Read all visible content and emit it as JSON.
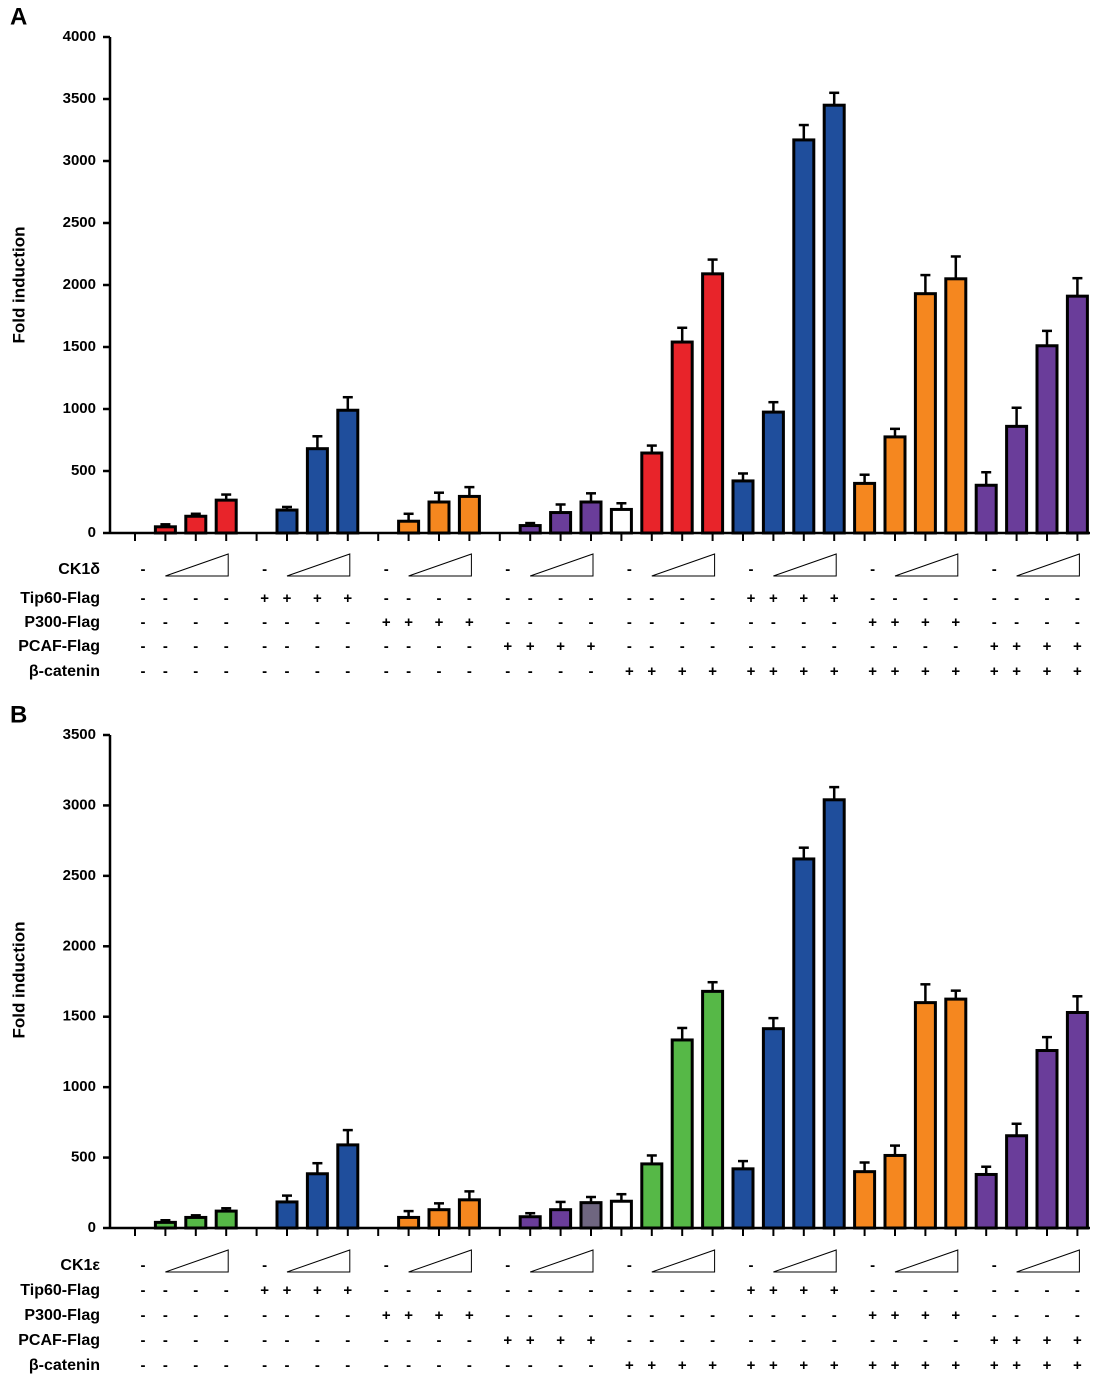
{
  "chart_data": [
    {
      "type": "bar",
      "panel": "A",
      "ylabel": "Fold induction",
      "ylim": [
        0,
        4000
      ],
      "yticks": [
        0,
        500,
        1000,
        1500,
        2000,
        2500,
        3000,
        3500,
        4000
      ],
      "categories": [
        null,
        null,
        null,
        null,
        null,
        null,
        null,
        null,
        null,
        null,
        null,
        null,
        null,
        null,
        null,
        null,
        null,
        null,
        null,
        null,
        null,
        null,
        null,
        null,
        null,
        null,
        null,
        null,
        null,
        null,
        null,
        null
      ],
      "values": [
        0,
        50,
        135,
        265,
        0,
        185,
        680,
        990,
        0,
        95,
        250,
        295,
        0,
        60,
        165,
        250,
        190,
        645,
        1540,
        2090,
        420,
        975,
        3170,
        3450,
        400,
        775,
        1930,
        2050,
        385,
        860,
        1510,
        1910
      ],
      "errors": [
        0,
        20,
        20,
        45,
        0,
        25,
        100,
        105,
        0,
        60,
        75,
        75,
        0,
        20,
        65,
        70,
        50,
        60,
        115,
        115,
        60,
        80,
        120,
        100,
        70,
        65,
        150,
        180,
        105,
        150,
        120,
        145
      ],
      "colors": [
        "#e8242a",
        "#e8242a",
        "#e8242a",
        "#e8242a",
        "#1f4e9c",
        "#1f4e9c",
        "#1f4e9c",
        "#1f4e9c",
        "#f5871f",
        "#f5871f",
        "#f5871f",
        "#f5871f",
        "#6a3d9a",
        "#6a3d9a",
        "#6a3d9a",
        "#6a3d9a",
        "#ffffff",
        "#e8242a",
        "#e8242a",
        "#e8242a",
        "#1f4e9c",
        "#1f4e9c",
        "#1f4e9c",
        "#1f4e9c",
        "#f5871f",
        "#f5871f",
        "#f5871f",
        "#f5871f",
        "#6a3d9a",
        "#6a3d9a",
        "#6a3d9a",
        "#6a3d9a"
      ],
      "conditions": [
        {
          "label": "CK1δ",
          "marks": [
            "-",
            null,
            null,
            null,
            "-",
            null,
            null,
            null,
            "-",
            null,
            null,
            null,
            "-",
            null,
            null,
            null,
            "-",
            null,
            null,
            null,
            "-",
            null,
            null,
            null,
            "-",
            null,
            null,
            null,
            "-",
            null,
            null,
            null
          ]
        },
        {
          "label": "Tip60-Flag",
          "marks": [
            "-",
            "-",
            "-",
            "-",
            "+",
            "+",
            "+",
            "+",
            "-",
            "-",
            "-",
            "-",
            "-",
            "-",
            "-",
            "-",
            "-",
            "-",
            "-",
            "-",
            "+",
            "+",
            "+",
            "+",
            "-",
            "-",
            "-",
            "-",
            "-",
            "-",
            "-",
            "-"
          ]
        },
        {
          "label": "P300-Flag",
          "marks": [
            "-",
            "-",
            "-",
            "-",
            "-",
            "-",
            "-",
            "-",
            "+",
            "+",
            "+",
            "+",
            "-",
            "-",
            "-",
            "-",
            "-",
            "-",
            "-",
            "-",
            "-",
            "-",
            "-",
            "-",
            "+",
            "+",
            "+",
            "+",
            "-",
            "-",
            "-",
            "-"
          ]
        },
        {
          "label": "PCAF-Flag",
          "marks": [
            "-",
            "-",
            "-",
            "-",
            "-",
            "-",
            "-",
            "-",
            "-",
            "-",
            "-",
            "-",
            "+",
            "+",
            "+",
            "+",
            "-",
            "-",
            "-",
            "-",
            "-",
            "-",
            "-",
            "-",
            "-",
            "-",
            "-",
            "-",
            "+",
            "+",
            "+",
            "+"
          ]
        },
        {
          "label": "β-catenin",
          "marks": [
            "-",
            "-",
            "-",
            "-",
            "-",
            "-",
            "-",
            "-",
            "-",
            "-",
            "-",
            "-",
            "-",
            "-",
            "-",
            "-",
            "+",
            "+",
            "+",
            "+",
            "+",
            "+",
            "+",
            "+",
            "+",
            "+",
            "+",
            "+",
            "+",
            "+",
            "+",
            "+"
          ]
        }
      ]
    },
    {
      "type": "bar",
      "panel": "B",
      "ylabel": "Fold induction",
      "ylim": [
        0,
        3500
      ],
      "yticks": [
        0,
        500,
        1000,
        1500,
        2000,
        2500,
        3000,
        3500
      ],
      "categories": [
        null,
        null,
        null,
        null,
        null,
        null,
        null,
        null,
        null,
        null,
        null,
        null,
        null,
        null,
        null,
        null,
        null,
        null,
        null,
        null,
        null,
        null,
        null,
        null,
        null,
        null,
        null,
        null,
        null,
        null,
        null,
        null
      ],
      "values": [
        0,
        40,
        75,
        120,
        0,
        185,
        385,
        590,
        0,
        75,
        130,
        200,
        0,
        80,
        130,
        180,
        190,
        455,
        1335,
        1680,
        420,
        1415,
        2620,
        3040,
        400,
        515,
        1600,
        1625,
        380,
        655,
        1260,
        1530
      ],
      "errors": [
        0,
        15,
        15,
        20,
        0,
        45,
        75,
        105,
        0,
        45,
        45,
        60,
        0,
        25,
        55,
        40,
        50,
        60,
        85,
        65,
        55,
        75,
        80,
        90,
        65,
        70,
        130,
        60,
        55,
        85,
        95,
        115
      ],
      "colors": [
        "#56b847",
        "#56b847",
        "#56b847",
        "#56b847",
        "#1f4e9c",
        "#1f4e9c",
        "#1f4e9c",
        "#1f4e9c",
        "#f5871f",
        "#f5871f",
        "#f5871f",
        "#f5871f",
        "#6a3d9a",
        "#6a3d9a",
        "#6a3d9a",
        "#6f6680",
        "#ffffff",
        "#56b847",
        "#56b847",
        "#56b847",
        "#1f4e9c",
        "#1f4e9c",
        "#1f4e9c",
        "#1f4e9c",
        "#f5871f",
        "#f5871f",
        "#f5871f",
        "#f5871f",
        "#6a3d9a",
        "#6a3d9a",
        "#6a3d9a",
        "#6a3d9a"
      ],
      "conditions": [
        {
          "label": "CK1ε",
          "marks": [
            "-",
            null,
            null,
            null,
            "-",
            null,
            null,
            null,
            "-",
            null,
            null,
            null,
            "-",
            null,
            null,
            null,
            "-",
            null,
            null,
            null,
            "-",
            null,
            null,
            null,
            "-",
            null,
            null,
            null,
            "-",
            null,
            null,
            null
          ]
        },
        {
          "label": "Tip60-Flag",
          "marks": [
            "-",
            "-",
            "-",
            "-",
            "+",
            "+",
            "+",
            "+",
            "-",
            "-",
            "-",
            "-",
            "-",
            "-",
            "-",
            "-",
            "-",
            "-",
            "-",
            "-",
            "+",
            "+",
            "+",
            "+",
            "-",
            "-",
            "-",
            "-",
            "-",
            "-",
            "-",
            "-"
          ]
        },
        {
          "label": "P300-Flag",
          "marks": [
            "-",
            "-",
            "-",
            "-",
            "-",
            "-",
            "-",
            "-",
            "+",
            "+",
            "+",
            "+",
            "-",
            "-",
            "-",
            "-",
            "-",
            "-",
            "-",
            "-",
            "-",
            "-",
            "-",
            "-",
            "+",
            "+",
            "+",
            "+",
            "-",
            "-",
            "-",
            "-"
          ]
        },
        {
          "label": "PCAF-Flag",
          "marks": [
            "-",
            "-",
            "-",
            "-",
            "-",
            "-",
            "-",
            "-",
            "-",
            "-",
            "-",
            "-",
            "+",
            "+",
            "+",
            "+",
            "-",
            "-",
            "-",
            "-",
            "-",
            "-",
            "-",
            "-",
            "-",
            "-",
            "-",
            "-",
            "+",
            "+",
            "+",
            "+"
          ]
        },
        {
          "label": "β-catenin",
          "marks": [
            "-",
            "-",
            "-",
            "-",
            "-",
            "-",
            "-",
            "-",
            "-",
            "-",
            "-",
            "-",
            "-",
            "-",
            "-",
            "-",
            "+",
            "+",
            "+",
            "+",
            "+",
            "+",
            "+",
            "+",
            "+",
            "+",
            "+",
            "+",
            "+",
            "+",
            "+",
            "+"
          ]
        }
      ]
    }
  ]
}
